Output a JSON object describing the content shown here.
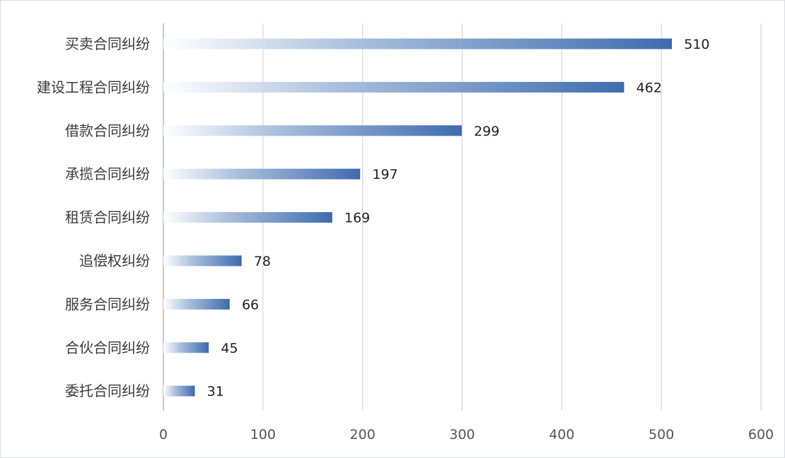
{
  "chart_data": {
    "type": "bar",
    "orientation": "horizontal",
    "categories": [
      "买卖合同纠纷",
      "建设工程合同纠纷",
      "借款合同纠纷",
      "承揽合同纠纷",
      "租赁合同纠纷",
      "追偿权纠纷",
      "服务合同纠纷",
      "合伙合同纠纷",
      "委托合同纠纷"
    ],
    "values": [
      510,
      462,
      299,
      197,
      169,
      78,
      66,
      45,
      31
    ],
    "data_labels": [
      "510",
      "462",
      "299",
      "197",
      "169",
      "78",
      "66",
      "45",
      "31"
    ],
    "xlim": [
      0,
      600
    ],
    "x_ticks": [
      0,
      100,
      200,
      300,
      400,
      500,
      600
    ],
    "x_tick_labels": [
      "0",
      "100",
      "200",
      "300",
      "400",
      "500",
      "600"
    ],
    "grid": "vertical",
    "legend": "none",
    "title": "",
    "xlabel": "",
    "ylabel": "",
    "colors": {
      "bar_solid": "#3f6cae",
      "bar_fade": "#ffffff",
      "bar_edge": "#3a64a4"
    }
  }
}
